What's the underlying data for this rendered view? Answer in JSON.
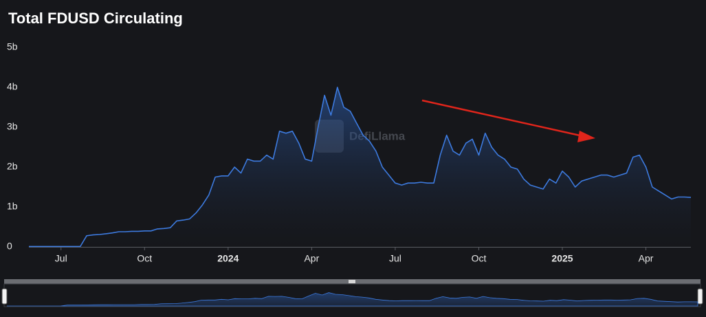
{
  "chart_data": {
    "type": "area",
    "title": "Total FDUSD Circulating",
    "watermark": "DefiLlama",
    "color": "#3d7be0",
    "categories": [
      null,
      null,
      null,
      null,
      null,
      "Jul",
      null,
      null,
      null,
      null,
      null,
      null,
      null,
      null,
      null,
      null,
      null,
      null,
      "Oct",
      null,
      null,
      null,
      null,
      null,
      null,
      null,
      null,
      null,
      null,
      null,
      null,
      "2024",
      null,
      null,
      null,
      null,
      null,
      null,
      null,
      null,
      null,
      null,
      null,
      null,
      "Apr",
      null,
      null,
      null,
      null,
      null,
      null,
      null,
      null,
      null,
      null,
      null,
      null,
      "Jul",
      null,
      null,
      null,
      null,
      null,
      null,
      null,
      null,
      null,
      null,
      null,
      null,
      "Oct",
      null,
      null,
      null,
      null,
      null,
      null,
      null,
      null,
      null,
      null,
      null,
      null,
      "2025",
      null,
      null,
      null,
      null,
      null,
      null,
      null,
      null,
      null,
      null,
      null,
      null,
      "Apr",
      null,
      null,
      null,
      null,
      null,
      null,
      null
    ],
    "values": [
      0.01,
      0.01,
      0.01,
      0.01,
      0.01,
      0.01,
      0.01,
      0.01,
      0.01,
      0.28,
      0.3,
      0.31,
      0.33,
      0.35,
      0.38,
      0.38,
      0.39,
      0.39,
      0.4,
      0.4,
      0.45,
      0.46,
      0.48,
      0.65,
      0.67,
      0.7,
      0.85,
      1.05,
      1.3,
      1.75,
      1.78,
      1.78,
      2.0,
      1.85,
      2.2,
      2.15,
      2.15,
      2.3,
      2.2,
      2.9,
      2.85,
      2.9,
      2.6,
      2.2,
      2.15,
      3.0,
      3.8,
      3.3,
      4.0,
      3.5,
      3.4,
      3.1,
      2.8,
      2.65,
      2.4,
      2.0,
      1.8,
      1.6,
      1.55,
      1.6,
      1.6,
      1.62,
      1.6,
      1.6,
      2.3,
      2.8,
      2.4,
      2.3,
      2.6,
      2.7,
      2.3,
      2.85,
      2.5,
      2.3,
      2.2,
      2.0,
      1.95,
      1.7,
      1.55,
      1.5,
      1.45,
      1.7,
      1.6,
      1.9,
      1.75,
      1.5,
      1.65,
      1.7,
      1.75,
      1.8,
      1.8,
      1.75,
      1.8,
      1.85,
      2.25,
      2.3,
      2.0,
      1.5,
      1.4,
      1.3,
      1.2,
      1.25,
      1.25,
      1.24
    ],
    "ylim": [
      0,
      5
    ],
    "yticks": [
      {
        "value": 0,
        "label": "0"
      },
      {
        "value": 1,
        "label": "1b"
      },
      {
        "value": 2,
        "label": "2b"
      },
      {
        "value": 3,
        "label": "3b"
      },
      {
        "value": 4,
        "label": "4b"
      },
      {
        "value": 5,
        "label": "5b"
      }
    ]
  }
}
